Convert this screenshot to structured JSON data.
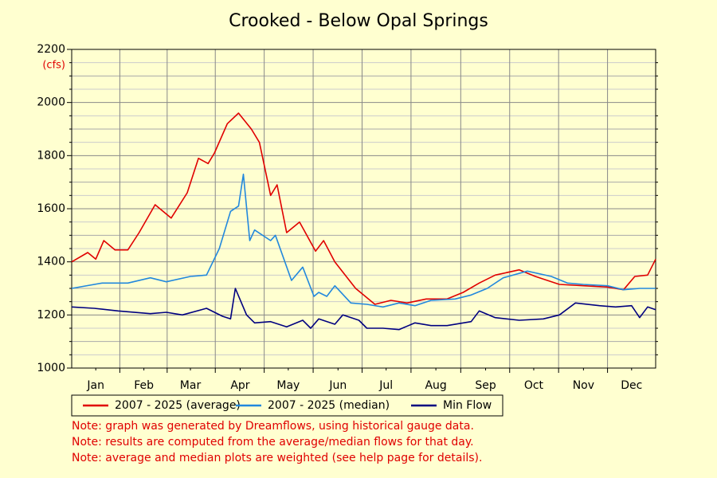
{
  "chart_data": {
    "type": "line",
    "title": "Crooked - Below Opal Springs",
    "y_unit": "(cfs)",
    "xlim": [
      1,
      365
    ],
    "xticks": [
      {
        "value": 16,
        "label": "Jan"
      },
      {
        "value": 46,
        "label": "Feb"
      },
      {
        "value": 75,
        "label": "Mar"
      },
      {
        "value": 106,
        "label": "Apr"
      },
      {
        "value": 136,
        "label": "May"
      },
      {
        "value": 167,
        "label": "Jun"
      },
      {
        "value": 197,
        "label": "Jul"
      },
      {
        "value": 228,
        "label": "Aug"
      },
      {
        "value": 259,
        "label": "Sep"
      },
      {
        "value": 289,
        "label": "Oct"
      },
      {
        "value": 320,
        "label": "Nov"
      },
      {
        "value": 350,
        "label": "Dec"
      }
    ],
    "ylim": [
      1000,
      2200
    ],
    "yticks": [
      1000,
      1200,
      1400,
      1600,
      1800,
      2000,
      2200
    ],
    "grid": true,
    "series": [
      {
        "name": "2007 - 2025 (average)",
        "color": "#e00000",
        "x": [
          1,
          11,
          16,
          21,
          28,
          36,
          43,
          53,
          63,
          73,
          80,
          86,
          90,
          98,
          105,
          113,
          118,
          125,
          129,
          135,
          143,
          153,
          158,
          165,
          178,
          190,
          200,
          210,
          222,
          235,
          245,
          255,
          265,
          280,
          290,
          305,
          320,
          335,
          345,
          352,
          360,
          365
        ],
        "values": [
          1400,
          1435,
          1410,
          1480,
          1445,
          1445,
          1510,
          1615,
          1565,
          1660,
          1790,
          1770,
          1810,
          1920,
          1960,
          1900,
          1850,
          1650,
          1690,
          1510,
          1550,
          1440,
          1480,
          1400,
          1300,
          1240,
          1255,
          1245,
          1260,
          1260,
          1285,
          1320,
          1350,
          1370,
          1345,
          1315,
          1310,
          1305,
          1295,
          1345,
          1350,
          1410
        ]
      },
      {
        "name": "2007 - 2025 (median)",
        "color": "#2288dd",
        "x": [
          1,
          20,
          36,
          50,
          60,
          75,
          85,
          93,
          100,
          105,
          108,
          112,
          115,
          125,
          128,
          138,
          145,
          152,
          155,
          160,
          165,
          175,
          185,
          195,
          205,
          215,
          225,
          240,
          250,
          260,
          270,
          285,
          300,
          310,
          320,
          335,
          345,
          355,
          365
        ],
        "values": [
          1300,
          1320,
          1320,
          1340,
          1325,
          1345,
          1350,
          1450,
          1590,
          1610,
          1730,
          1480,
          1520,
          1480,
          1500,
          1330,
          1380,
          1270,
          1285,
          1270,
          1310,
          1245,
          1240,
          1230,
          1245,
          1235,
          1255,
          1260,
          1275,
          1300,
          1340,
          1365,
          1345,
          1320,
          1315,
          1310,
          1295,
          1300,
          1300
        ]
      },
      {
        "name": "Min Flow",
        "color": "#000080",
        "x": [
          1,
          15,
          30,
          50,
          60,
          70,
          85,
          95,
          100,
          103,
          110,
          115,
          125,
          135,
          145,
          150,
          155,
          165,
          170,
          180,
          185,
          195,
          205,
          215,
          225,
          235,
          250,
          255,
          265,
          280,
          295,
          305,
          315,
          330,
          340,
          350,
          355,
          360,
          365
        ],
        "values": [
          1230,
          1225,
          1215,
          1205,
          1210,
          1200,
          1225,
          1195,
          1185,
          1300,
          1200,
          1170,
          1175,
          1155,
          1180,
          1150,
          1185,
          1165,
          1200,
          1180,
          1150,
          1150,
          1145,
          1170,
          1160,
          1160,
          1175,
          1215,
          1190,
          1180,
          1185,
          1200,
          1245,
          1235,
          1230,
          1235,
          1190,
          1230,
          1220
        ]
      }
    ],
    "notes": [
      "Note: graph was generated by Dreamflows, using historical gauge data.",
      "Note: results are computed from the average/median flows for that day.",
      "Note: average and median plots are weighted (see help page for details)."
    ]
  }
}
